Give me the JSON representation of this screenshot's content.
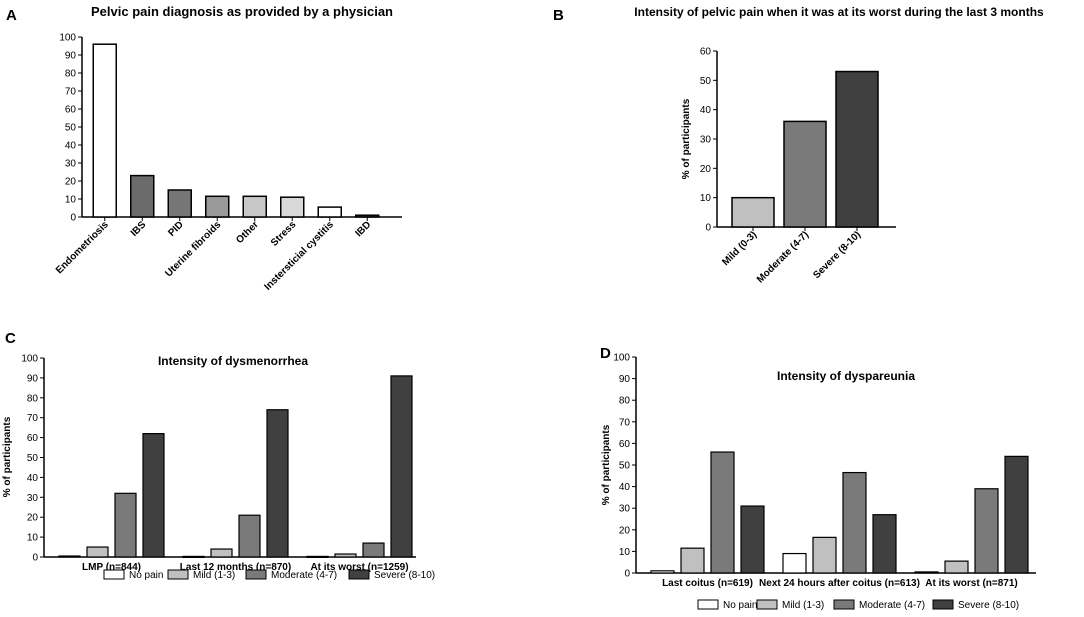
{
  "chart_data": [
    {
      "panel": "A",
      "type": "bar",
      "title": "Pelvic pain diagnosis as provided by a physician",
      "xlabel": "",
      "ylabel": "",
      "ylim": [
        0,
        100
      ],
      "yticks": [
        0,
        10,
        20,
        30,
        40,
        50,
        60,
        70,
        80,
        90,
        100
      ],
      "categories": [
        "Endometriosis",
        "IBS",
        "PID",
        "Uterine fibroids",
        "Other",
        "Stress",
        "Instersticial cystitis",
        "IBD"
      ],
      "values": [
        96,
        23,
        15,
        11.5,
        11.5,
        11,
        5.5,
        1
      ],
      "colors": [
        "#ffffff",
        "#6b6b6b",
        "#767676",
        "#9a9a9a",
        "#c8c8c8",
        "#d8d8d8",
        "#ffffff",
        "#404040"
      ]
    },
    {
      "panel": "B",
      "type": "bar",
      "title": "Intensity of pelvic pain when it was at its worst during the last 3 months",
      "xlabel": "",
      "ylabel": "% of participants",
      "ylim": [
        0,
        60
      ],
      "yticks": [
        0,
        10,
        20,
        30,
        40,
        50,
        60
      ],
      "categories": [
        "Mild (0-3)",
        "Moderate (4-7)",
        "Severe (8-10)"
      ],
      "values": [
        10,
        36,
        53
      ],
      "colors": [
        "#c0c0c0",
        "#7a7a7a",
        "#404040"
      ]
    },
    {
      "panel": "C",
      "type": "bar",
      "title": "Intensity of dysmenorrhea",
      "xlabel": "",
      "ylabel": "% of participants",
      "ylim": [
        0,
        100
      ],
      "yticks": [
        0,
        10,
        20,
        30,
        40,
        50,
        60,
        70,
        80,
        90,
        100
      ],
      "categories": [
        "LMP (n=844)",
        "Last 12 months (n=870)",
        "At its worst (n=1259)"
      ],
      "series": [
        {
          "name": "No pain",
          "values": [
            0.5,
            0.3,
            0.3
          ],
          "color": "#ffffff"
        },
        {
          "name": "Mild (1-3)",
          "values": [
            5,
            4,
            1.5
          ],
          "color": "#c0c0c0"
        },
        {
          "name": "Moderate (4-7)",
          "values": [
            32,
            21,
            7
          ],
          "color": "#7a7a7a"
        },
        {
          "name": "Severe (8-10)",
          "values": [
            62,
            74,
            91
          ],
          "color": "#404040"
        }
      ]
    },
    {
      "panel": "D",
      "type": "bar",
      "title": "Intensity of dyspareunia",
      "xlabel": "",
      "ylabel": "% of participants",
      "ylim": [
        0,
        100
      ],
      "yticks": [
        0,
        10,
        20,
        30,
        40,
        50,
        60,
        70,
        80,
        90,
        100
      ],
      "categories": [
        "Last coitus (n=619)",
        "Next 24 hours after coitus (n=613)",
        "At its worst (n=871)"
      ],
      "series": [
        {
          "name": "No pain",
          "values": [
            1,
            9,
            0.5
          ],
          "color": "#ffffff"
        },
        {
          "name": "Mild (1-3)",
          "values": [
            11.5,
            16.5,
            5.5
          ],
          "color": "#c0c0c0"
        },
        {
          "name": "Moderate (4-7)",
          "values": [
            56,
            46.5,
            39
          ],
          "color": "#7a7a7a"
        },
        {
          "name": "Severe (8-10)",
          "values": [
            31,
            27,
            54
          ],
          "color": "#404040"
        }
      ]
    }
  ]
}
